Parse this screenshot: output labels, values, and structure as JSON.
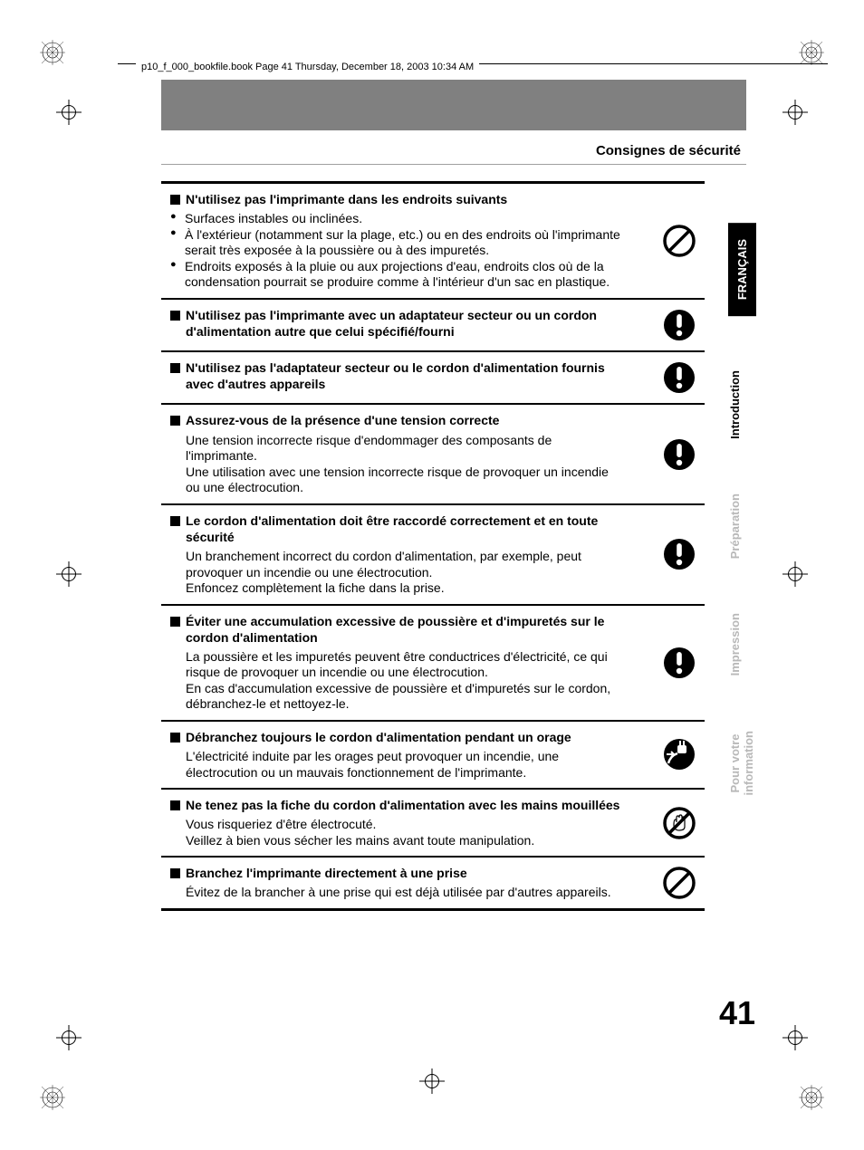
{
  "header_running": "p10_f_000_bookfile.book  Page 41  Thursday, December 18, 2003  10:34 AM",
  "section_title": "Consignes de sécurité",
  "page_number": "41",
  "tabs": [
    {
      "label": "FRANÇAIS",
      "style": "active"
    },
    {
      "label": "Introduction",
      "style": "dark"
    },
    {
      "label": "Préparation",
      "style": "grey"
    },
    {
      "label": "Impression",
      "style": "grey"
    },
    {
      "label": "Pour votre\ninformation",
      "style": "grey"
    }
  ],
  "items": [
    {
      "head": "N'utilisez pas l'imprimante dans les endroits suivants",
      "bullets": [
        "Surfaces instables ou inclinées.",
        "À l'extérieur (notamment sur la plage, etc.) ou en des endroits où l'imprimante serait très exposée à la poussière ou à des impuretés.",
        "Endroits exposés à la pluie ou aux projections d'eau, endroits clos où de la condensation pourrait se produire comme à l'intérieur d'un sac en plastique."
      ],
      "icon": "prohibit"
    },
    {
      "head": "N'utilisez pas l'imprimante avec un adaptateur secteur ou un cordon d'alimentation autre que celui spécifié/fourni",
      "body": "",
      "icon": "mandatory"
    },
    {
      "head": "N'utilisez pas l'adaptateur secteur ou le cordon d'alimentation fournis avec d'autres appareils",
      "body": "",
      "icon": "mandatory"
    },
    {
      "head": "Assurez-vous de la présence d'une tension correcte",
      "body": "Une tension incorrecte risque d'endommager des composants de l'imprimante.\nUne utilisation avec une tension incorrecte risque de provoquer un incendie ou une électrocution.",
      "icon": "mandatory"
    },
    {
      "head": "Le cordon d'alimentation doit être raccordé correctement et en toute sécurité",
      "body": "Un branchement incorrect du cordon d'alimentation, par exemple, peut provoquer un incendie ou une électrocution.\nEnfoncez complètement la fiche dans la prise.",
      "icon": "mandatory"
    },
    {
      "head": "Éviter une accumulation excessive de poussière et d'impuretés sur le cordon d'alimentation",
      "body": "La poussière et les impuretés peuvent être conductrices d'électricité, ce qui risque de provoquer un incendie ou une électrocution.\nEn cas d'accumulation excessive de poussière et d'impuretés sur le cordon, débranchez-le et nettoyez-le.",
      "icon": "mandatory"
    },
    {
      "head": "Débranchez toujours le cordon d'alimentation pendant un orage",
      "body": "L'électricité induite par les orages peut provoquer un incendie, une électrocution ou un mauvais fonctionnement de l'imprimante.",
      "icon": "unplug"
    },
    {
      "head": "Ne tenez pas la fiche du cordon d'alimentation avec les mains mouillées",
      "body": "Vous risqueriez d'être électrocuté.\nVeillez à bien vous sécher les mains avant toute manipulation.",
      "icon": "wethand"
    },
    {
      "head": "Branchez l'imprimante directement à une prise",
      "body": "Évitez de la brancher à une prise qui est déjà utilisée par d'autres appareils.",
      "icon": "prohibit"
    }
  ],
  "icons": {
    "prohibit": {
      "stroke": "#000000",
      "fill": "none"
    },
    "mandatory": {
      "fill": "#000000",
      "accent": "#ffffff"
    },
    "unplug": {
      "fill": "#000000",
      "accent": "#ffffff"
    },
    "wethand": {
      "stroke": "#000000",
      "fill": "none"
    }
  },
  "registration_mark_color": "#000000"
}
